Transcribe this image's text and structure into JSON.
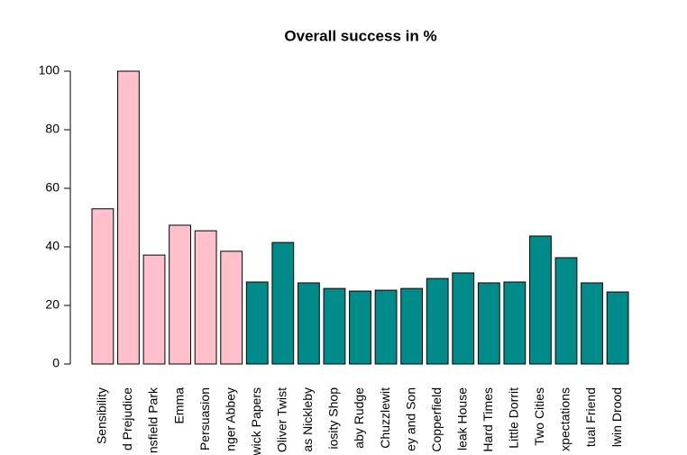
{
  "chart_data": {
    "type": "bar",
    "title": "Overall success in %",
    "categories": [
      "Sensibility",
      "d Prejudice",
      "nsfield Park",
      "Emma",
      "Persuasion",
      "nger Abbey",
      "wick Papers",
      "Oliver Twist",
      "as Nickleby",
      "iosity Shop",
      "aby Rudge",
      "Chuzzlewit",
      "ey and Son",
      "Copperfield",
      "leak House",
      "Hard Times",
      "Little Dorrit",
      "Two Cities",
      "xpectations",
      "tual Friend",
      "lwin Drood"
    ],
    "values": [
      53,
      100,
      37.2,
      47.4,
      45.5,
      38.5,
      28,
      41.5,
      27.7,
      25.8,
      24.9,
      25.2,
      25.8,
      29.2,
      31.1,
      27.7,
      28,
      43.7,
      36.3,
      27.7,
      24.6
    ],
    "colors": [
      "#ffc0cb",
      "#ffc0cb",
      "#ffc0cb",
      "#ffc0cb",
      "#ffc0cb",
      "#ffc0cb",
      "#008b8b",
      "#008b8b",
      "#008b8b",
      "#008b8b",
      "#008b8b",
      "#008b8b",
      "#008b8b",
      "#008b8b",
      "#008b8b",
      "#008b8b",
      "#008b8b",
      "#008b8b",
      "#008b8b",
      "#008b8b",
      "#008b8b"
    ],
    "ylim": [
      0,
      100
    ],
    "yticks": [
      0,
      20,
      40,
      60,
      80,
      100
    ],
    "grid": false
  }
}
